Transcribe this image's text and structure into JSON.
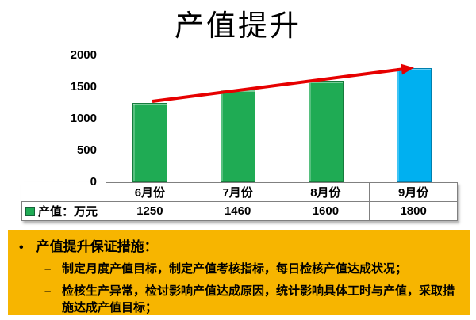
{
  "title": "产值提升",
  "chart_data": {
    "type": "bar",
    "title": "产值提升",
    "categories": [
      "6月份",
      "7月份",
      "8月份",
      "9月份"
    ],
    "series": [
      {
        "name": "产值：万元",
        "values": [
          1250,
          1460,
          1600,
          1800
        ]
      }
    ],
    "xlabel": "",
    "ylabel": "",
    "ylim": [
      0,
      2000
    ],
    "yticks": [
      0,
      500,
      1000,
      1500,
      2000
    ],
    "grid": false,
    "legend_position": "table-row-bottom-left",
    "bar_colors": [
      "#1FAB54",
      "#1FAB54",
      "#1FAB54",
      "#00B0F0"
    ],
    "trend_arrow": {
      "color": "#E60000",
      "from_value": 1250,
      "to_value": 1800
    }
  },
  "table": {
    "legend_label": "产值：万元",
    "legend_swatch_color": "#1FAB54",
    "header": [
      "6月份",
      "7月份",
      "8月份",
      "9月份"
    ],
    "values": [
      "1250",
      "1460",
      "1600",
      "1800"
    ]
  },
  "notes": {
    "background_color": "#F7B500",
    "heading": "产值提升保证措施：",
    "bullet_char": "•",
    "dash_char": "–",
    "items": [
      "制定月度产值目标，制定产值考核指标，每日检核产值达成状况；",
      "检核生产异常，检讨影响产值达成原因，统计影响具体工时与产值，采取措施达成产值目标；"
    ]
  }
}
